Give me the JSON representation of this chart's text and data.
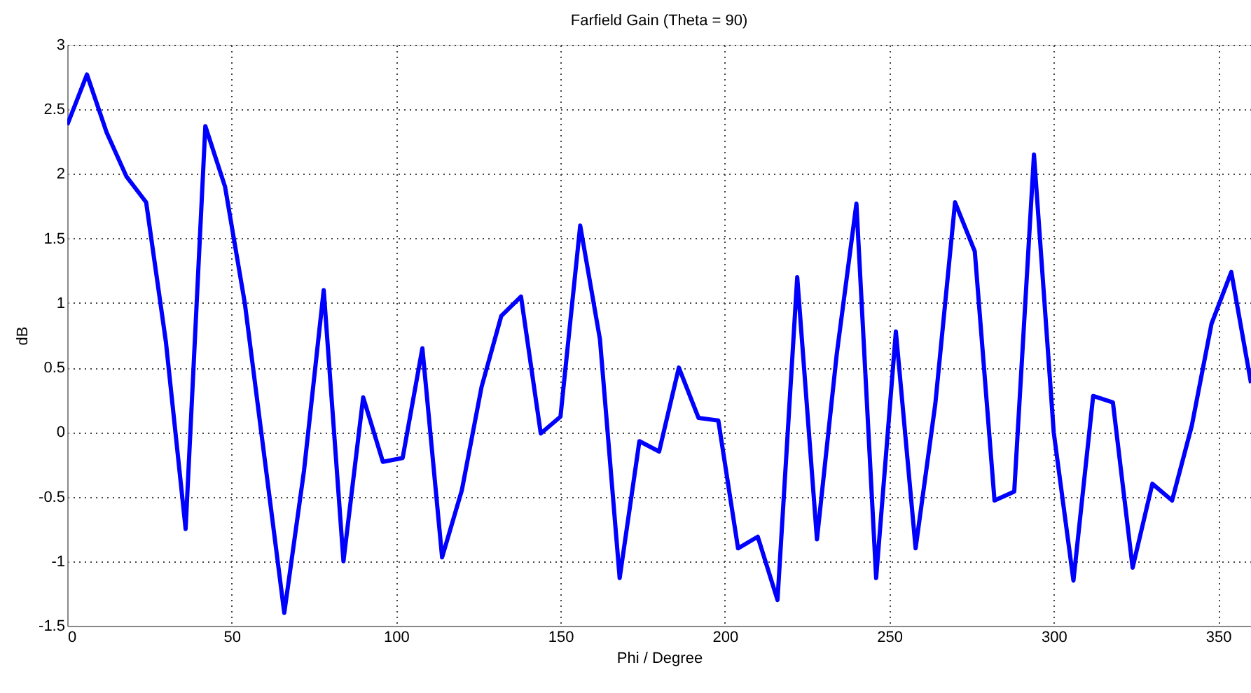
{
  "chart_data": {
    "type": "line",
    "title": "Farfield Gain (Theta = 90)",
    "xlabel": "Phi / Degree",
    "ylabel": "dB",
    "x": [
      0,
      6,
      12,
      18,
      24,
      30,
      36,
      42,
      48,
      54,
      60,
      66,
      72,
      78,
      84,
      90,
      96,
      102,
      108,
      114,
      120,
      126,
      132,
      138,
      144,
      150,
      156,
      162,
      168,
      174,
      180,
      186,
      192,
      198,
      204,
      210,
      216,
      222,
      228,
      234,
      240,
      246,
      252,
      258,
      264,
      270,
      276,
      282,
      288,
      294,
      300,
      306,
      312,
      318,
      324,
      330,
      336,
      342,
      348,
      354,
      360
    ],
    "series": [
      {
        "color": "#0000ff",
        "values": [
          2.38,
          2.77,
          2.32,
          1.98,
          1.78,
          0.7,
          -0.75,
          2.37,
          1.9,
          1.0,
          -0.2,
          -1.4,
          -0.3,
          1.1,
          -1.0,
          0.27,
          -0.23,
          -0.2,
          0.65,
          -0.97,
          -0.45,
          0.35,
          0.9,
          1.05,
          -0.01,
          0.12,
          1.6,
          0.72,
          -1.13,
          -0.07,
          -0.15,
          0.5,
          0.11,
          0.09,
          -0.9,
          -0.81,
          -1.3,
          1.2,
          -0.83,
          0.6,
          1.77,
          -1.13,
          0.78,
          -0.9,
          0.22,
          1.78,
          1.4,
          -0.53,
          -0.46,
          2.15,
          0.0,
          -1.15,
          0.28,
          0.23,
          -1.05,
          -0.4,
          -0.53,
          0.05,
          0.84,
          1.24,
          0.38
        ]
      }
    ],
    "xlim": [
      0,
      360
    ],
    "xticks": [
      0,
      50,
      100,
      150,
      200,
      250,
      300,
      350
    ],
    "ylim": [
      -1.5,
      3
    ],
    "yticks": [
      -1.5,
      -1,
      -0.5,
      0,
      0.5,
      1,
      1.5,
      2,
      2.5,
      3
    ],
    "grid": true,
    "marker": "none",
    "line_style": "solid"
  }
}
